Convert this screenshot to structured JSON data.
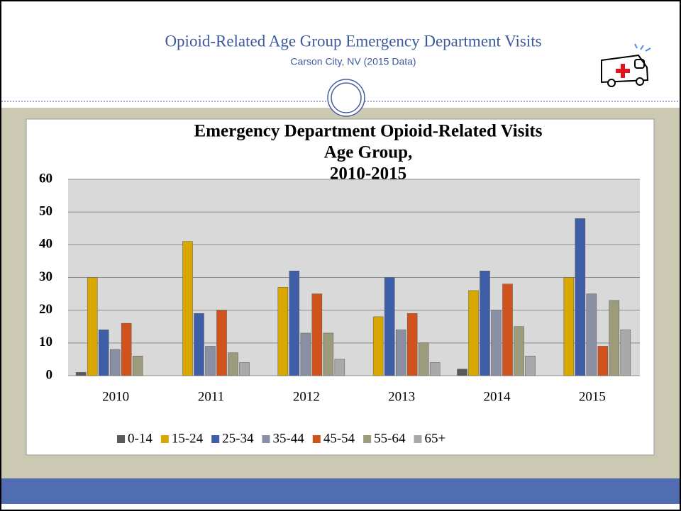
{
  "slide": {
    "title": "Opioid-Related Age Group Emergency Department Visits",
    "subtitle": "Carson City, NV (2015 Data)"
  },
  "chart_data": {
    "type": "bar",
    "title": [
      "Emergency Department Opioid-Related Visits",
      "Age Group,",
      "2010-2015"
    ],
    "categories": [
      "2010",
      "2011",
      "2012",
      "2013",
      "2014",
      "2015"
    ],
    "series": [
      {
        "name": "0-14",
        "color": "#5a5a5a",
        "values": [
          1,
          0,
          0,
          0,
          2,
          0
        ]
      },
      {
        "name": "15-24",
        "color": "#d9a800",
        "values": [
          30,
          41,
          27,
          18,
          26,
          30
        ]
      },
      {
        "name": "25-34",
        "color": "#3f5ea8",
        "values": [
          14,
          19,
          32,
          30,
          32,
          48
        ]
      },
      {
        "name": "35-44",
        "color": "#8b8fa3",
        "values": [
          8,
          9,
          13,
          14,
          20,
          25
        ]
      },
      {
        "name": "45-54",
        "color": "#d0531d",
        "values": [
          16,
          20,
          25,
          19,
          28,
          9
        ]
      },
      {
        "name": "55-64",
        "color": "#9c9c7c",
        "values": [
          6,
          7,
          13,
          10,
          15,
          23
        ]
      },
      {
        "name": "65+",
        "color": "#a9a9a9",
        "values": [
          0,
          4,
          5,
          4,
          6,
          14
        ]
      }
    ],
    "ylim": [
      0,
      60
    ],
    "yticks": [
      0,
      10,
      20,
      30,
      40,
      50,
      60
    ],
    "grid": true,
    "legend": "bottom"
  }
}
